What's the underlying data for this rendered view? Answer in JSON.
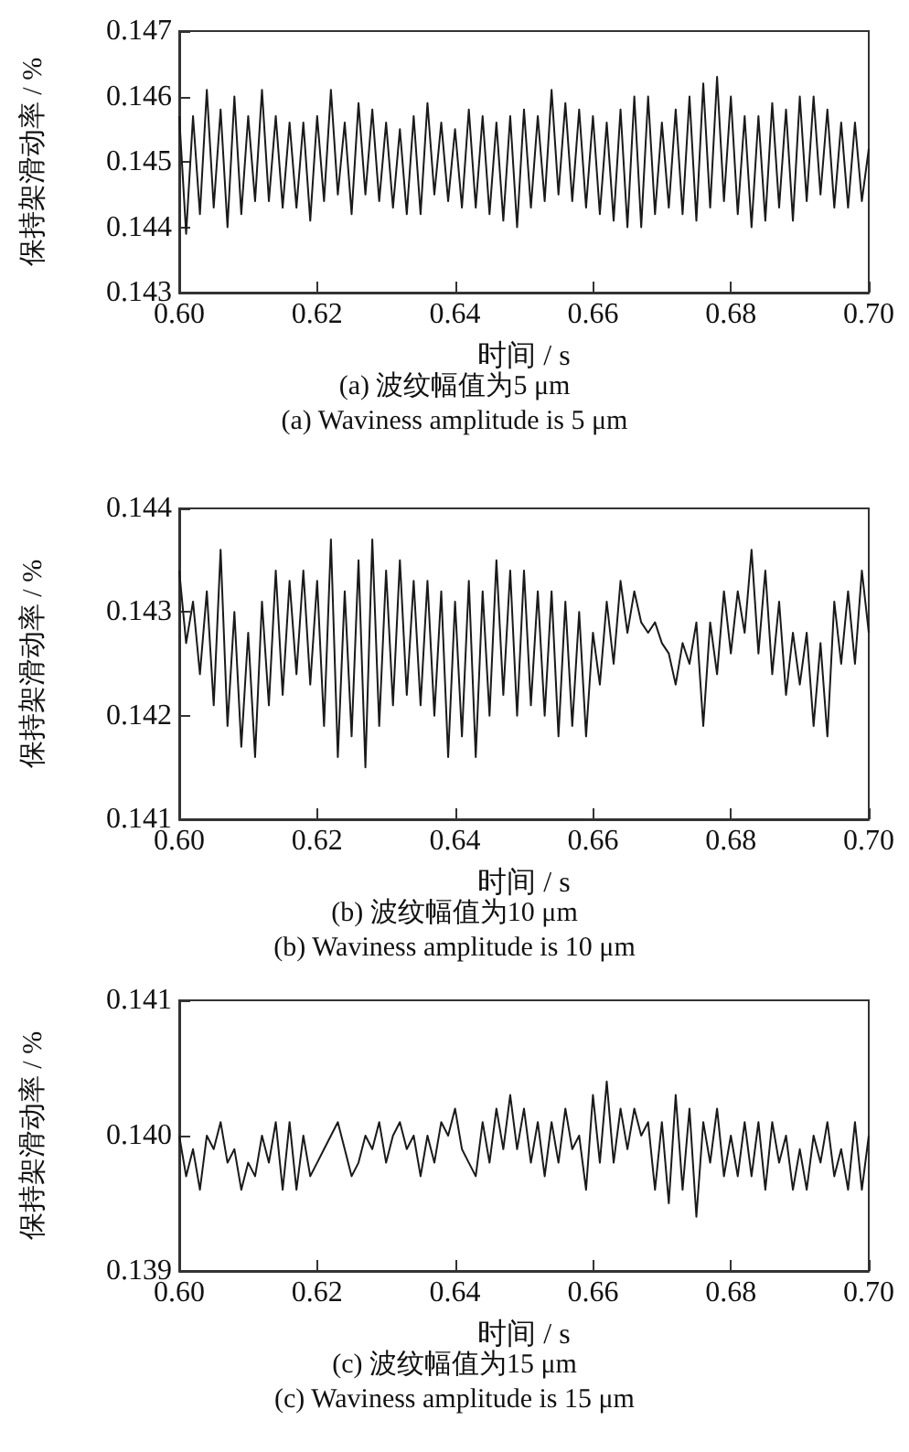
{
  "chart_data": [
    {
      "type": "line",
      "title": "(a) 波纹幅值为5 μm",
      "subtitle": "(a) Waviness amplitude is 5 μm",
      "xlabel": "时间 / s",
      "ylabel": "保持架滑动率 / %",
      "color": "#1a1a1a",
      "line_style": "solid",
      "xlim": [
        0.6,
        0.7
      ],
      "xticks": [
        {
          "value": 0.6,
          "label": "0.60"
        },
        {
          "value": 0.62,
          "label": "0.62"
        },
        {
          "value": 0.64,
          "label": "0.64"
        },
        {
          "value": 0.66,
          "label": "0.66"
        },
        {
          "value": 0.68,
          "label": "0.68"
        },
        {
          "value": 0.7,
          "label": "0.70"
        }
      ],
      "ylim": [
        0.143,
        0.147
      ],
      "yticks": [
        0.143,
        0.144,
        0.145,
        0.146,
        0.147
      ],
      "x": [
        0.6,
        0.601,
        0.602,
        0.603,
        0.604,
        0.605,
        0.606,
        0.607,
        0.608,
        0.609,
        0.61,
        0.611,
        0.612,
        0.613,
        0.614,
        0.615,
        0.616,
        0.617,
        0.618,
        0.619,
        0.62,
        0.621,
        0.622,
        0.623,
        0.624,
        0.625,
        0.626,
        0.627,
        0.628,
        0.629,
        0.63,
        0.631,
        0.632,
        0.633,
        0.634,
        0.635,
        0.636,
        0.637,
        0.638,
        0.639,
        0.64,
        0.641,
        0.642,
        0.643,
        0.644,
        0.645,
        0.646,
        0.647,
        0.648,
        0.649,
        0.65,
        0.651,
        0.652,
        0.653,
        0.654,
        0.655,
        0.656,
        0.657,
        0.658,
        0.659,
        0.66,
        0.661,
        0.662,
        0.663,
        0.664,
        0.665,
        0.666,
        0.667,
        0.668,
        0.669,
        0.67,
        0.671,
        0.672,
        0.673,
        0.674,
        0.675,
        0.676,
        0.677,
        0.678,
        0.679,
        0.68,
        0.681,
        0.682,
        0.683,
        0.684,
        0.685,
        0.686,
        0.687,
        0.688,
        0.689,
        0.69,
        0.691,
        0.692,
        0.693,
        0.694,
        0.695,
        0.696,
        0.697,
        0.698,
        0.699,
        0.7
      ],
      "values": [
        0.1457,
        0.1439,
        0.1457,
        0.1442,
        0.1461,
        0.1443,
        0.1458,
        0.144,
        0.146,
        0.1442,
        0.1457,
        0.1444,
        0.1461,
        0.1444,
        0.1457,
        0.1443,
        0.1456,
        0.1443,
        0.1456,
        0.1441,
        0.1457,
        0.1444,
        0.1461,
        0.1445,
        0.1456,
        0.1442,
        0.1459,
        0.1445,
        0.1458,
        0.1444,
        0.1456,
        0.1443,
        0.1455,
        0.1442,
        0.1457,
        0.1442,
        0.1459,
        0.1445,
        0.1456,
        0.1444,
        0.1455,
        0.1443,
        0.1458,
        0.1443,
        0.1457,
        0.1442,
        0.1456,
        0.1441,
        0.1457,
        0.144,
        0.1458,
        0.1443,
        0.1457,
        0.1444,
        0.1461,
        0.1445,
        0.1459,
        0.1444,
        0.1458,
        0.1443,
        0.1457,
        0.1442,
        0.1456,
        0.1441,
        0.1458,
        0.144,
        0.146,
        0.144,
        0.146,
        0.1442,
        0.1456,
        0.1443,
        0.1458,
        0.1442,
        0.146,
        0.1441,
        0.1462,
        0.1443,
        0.1463,
        0.1444,
        0.146,
        0.1442,
        0.1457,
        0.144,
        0.1457,
        0.1441,
        0.1459,
        0.1443,
        0.1458,
        0.1441,
        0.146,
        0.1444,
        0.146,
        0.1445,
        0.1458,
        0.1443,
        0.1456,
        0.1443,
        0.1456,
        0.1444,
        0.1452
      ]
    },
    {
      "type": "line",
      "title": "(b) 波纹幅值为10 μm",
      "subtitle": "(b) Waviness amplitude is 10 μm",
      "xlabel": "时间 / s",
      "ylabel": "保持架滑动率 / %",
      "color": "#1a1a1a",
      "line_style": "solid",
      "xlim": [
        0.6,
        0.7
      ],
      "xticks": [
        {
          "value": 0.6,
          "label": "0.60"
        },
        {
          "value": 0.62,
          "label": "0.62"
        },
        {
          "value": 0.64,
          "label": "0.64"
        },
        {
          "value": 0.66,
          "label": "0.66"
        },
        {
          "value": 0.68,
          "label": "0.68"
        },
        {
          "value": 0.7,
          "label": "0.70"
        }
      ],
      "ylim": [
        0.141,
        0.144
      ],
      "yticks": [
        0.141,
        0.142,
        0.143,
        0.144
      ],
      "x": [
        0.6,
        0.601,
        0.602,
        0.603,
        0.604,
        0.605,
        0.606,
        0.607,
        0.608,
        0.609,
        0.61,
        0.611,
        0.612,
        0.613,
        0.614,
        0.615,
        0.616,
        0.617,
        0.618,
        0.619,
        0.62,
        0.621,
        0.622,
        0.623,
        0.624,
        0.625,
        0.626,
        0.627,
        0.628,
        0.629,
        0.63,
        0.631,
        0.632,
        0.633,
        0.634,
        0.635,
        0.636,
        0.637,
        0.638,
        0.639,
        0.64,
        0.641,
        0.642,
        0.643,
        0.644,
        0.645,
        0.646,
        0.647,
        0.648,
        0.649,
        0.65,
        0.651,
        0.652,
        0.653,
        0.654,
        0.655,
        0.656,
        0.657,
        0.658,
        0.659,
        0.66,
        0.661,
        0.662,
        0.663,
        0.664,
        0.665,
        0.666,
        0.667,
        0.668,
        0.669,
        0.67,
        0.671,
        0.672,
        0.673,
        0.674,
        0.675,
        0.676,
        0.677,
        0.678,
        0.679,
        0.68,
        0.681,
        0.682,
        0.683,
        0.684,
        0.685,
        0.686,
        0.687,
        0.688,
        0.689,
        0.69,
        0.691,
        0.692,
        0.693,
        0.694,
        0.695,
        0.696,
        0.697,
        0.698,
        0.699,
        0.7
      ],
      "values": [
        0.1434,
        0.1427,
        0.1431,
        0.1424,
        0.1432,
        0.1421,
        0.1436,
        0.1419,
        0.143,
        0.1417,
        0.1428,
        0.1416,
        0.1431,
        0.1421,
        0.1434,
        0.1422,
        0.1433,
        0.1424,
        0.1434,
        0.1423,
        0.1433,
        0.1419,
        0.1437,
        0.1416,
        0.1432,
        0.1418,
        0.1435,
        0.1415,
        0.1437,
        0.1419,
        0.1434,
        0.1421,
        0.1435,
        0.1422,
        0.1433,
        0.1421,
        0.1433,
        0.142,
        0.1432,
        0.1416,
        0.1431,
        0.1418,
        0.1433,
        0.1416,
        0.1432,
        0.142,
        0.1435,
        0.1422,
        0.1434,
        0.142,
        0.1434,
        0.1421,
        0.1432,
        0.142,
        0.1432,
        0.1418,
        0.1431,
        0.1419,
        0.143,
        0.1418,
        0.1428,
        0.1423,
        0.1431,
        0.1425,
        0.1433,
        0.1428,
        0.1432,
        0.1429,
        0.1428,
        0.1429,
        0.1427,
        0.1426,
        0.1423,
        0.1427,
        0.1425,
        0.1429,
        0.1419,
        0.1429,
        0.1424,
        0.1432,
        0.1426,
        0.1432,
        0.1428,
        0.1436,
        0.1426,
        0.1434,
        0.1424,
        0.1431,
        0.1422,
        0.1428,
        0.1423,
        0.1428,
        0.1419,
        0.1427,
        0.1418,
        0.1431,
        0.1425,
        0.1432,
        0.1425,
        0.1434,
        0.1428
      ]
    },
    {
      "type": "line",
      "title": "(c) 波纹幅值为15 μm",
      "subtitle": "(c) Waviness amplitude is 15 μm",
      "xlabel": "时间 / s",
      "ylabel": "保持架滑动率 / %",
      "color": "#1a1a1a",
      "line_style": "solid",
      "xlim": [
        0.6,
        0.7
      ],
      "xticks": [
        {
          "value": 0.6,
          "label": "0.60"
        },
        {
          "value": 0.62,
          "label": "0.62"
        },
        {
          "value": 0.64,
          "label": "0.64"
        },
        {
          "value": 0.66,
          "label": "0.66"
        },
        {
          "value": 0.68,
          "label": "0.68"
        },
        {
          "value": 0.7,
          "label": "0.70"
        }
      ],
      "ylim": [
        0.139,
        0.141
      ],
      "yticks": [
        0.139,
        {
          "value": 0.14,
          "label": "0.140"
        },
        0.141
      ],
      "x": [
        0.6,
        0.601,
        0.602,
        0.603,
        0.604,
        0.605,
        0.606,
        0.607,
        0.608,
        0.609,
        0.61,
        0.611,
        0.612,
        0.613,
        0.614,
        0.615,
        0.616,
        0.617,
        0.618,
        0.619,
        0.62,
        0.621,
        0.622,
        0.623,
        0.624,
        0.625,
        0.626,
        0.627,
        0.628,
        0.629,
        0.63,
        0.631,
        0.632,
        0.633,
        0.634,
        0.635,
        0.636,
        0.637,
        0.638,
        0.639,
        0.64,
        0.641,
        0.642,
        0.643,
        0.644,
        0.645,
        0.646,
        0.647,
        0.648,
        0.649,
        0.65,
        0.651,
        0.652,
        0.653,
        0.654,
        0.655,
        0.656,
        0.657,
        0.658,
        0.659,
        0.66,
        0.661,
        0.662,
        0.663,
        0.664,
        0.665,
        0.666,
        0.667,
        0.668,
        0.669,
        0.67,
        0.671,
        0.672,
        0.673,
        0.674,
        0.675,
        0.676,
        0.677,
        0.678,
        0.679,
        0.68,
        0.681,
        0.682,
        0.683,
        0.684,
        0.685,
        0.686,
        0.687,
        0.688,
        0.689,
        0.69,
        0.691,
        0.692,
        0.693,
        0.694,
        0.695,
        0.696,
        0.697,
        0.698,
        0.699,
        0.7
      ],
      "values": [
        0.14,
        0.1397,
        0.1399,
        0.1396,
        0.14,
        0.1399,
        0.1401,
        0.1398,
        0.1399,
        0.1396,
        0.1398,
        0.1397,
        0.14,
        0.1398,
        0.1401,
        0.1396,
        0.1401,
        0.1396,
        0.14,
        0.1397,
        0.1398,
        0.1399,
        0.14,
        0.1401,
        0.1399,
        0.1397,
        0.1398,
        0.14,
        0.1399,
        0.1401,
        0.1398,
        0.14,
        0.1401,
        0.1399,
        0.14,
        0.1397,
        0.14,
        0.1398,
        0.1401,
        0.14,
        0.1402,
        0.1399,
        0.1398,
        0.1397,
        0.1401,
        0.1398,
        0.1402,
        0.1399,
        0.1403,
        0.1399,
        0.1402,
        0.1398,
        0.1401,
        0.1397,
        0.1401,
        0.1398,
        0.1402,
        0.1399,
        0.14,
        0.1396,
        0.1403,
        0.1398,
        0.1404,
        0.1398,
        0.1402,
        0.1399,
        0.1402,
        0.14,
        0.1401,
        0.1396,
        0.1401,
        0.1395,
        0.1403,
        0.1396,
        0.1402,
        0.1394,
        0.1401,
        0.1398,
        0.1402,
        0.1397,
        0.14,
        0.1397,
        0.1401,
        0.1397,
        0.1401,
        0.1396,
        0.1401,
        0.1398,
        0.14,
        0.1396,
        0.1399,
        0.1396,
        0.14,
        0.1398,
        0.1401,
        0.1397,
        0.1399,
        0.1396,
        0.1401,
        0.1396,
        0.14
      ]
    }
  ]
}
